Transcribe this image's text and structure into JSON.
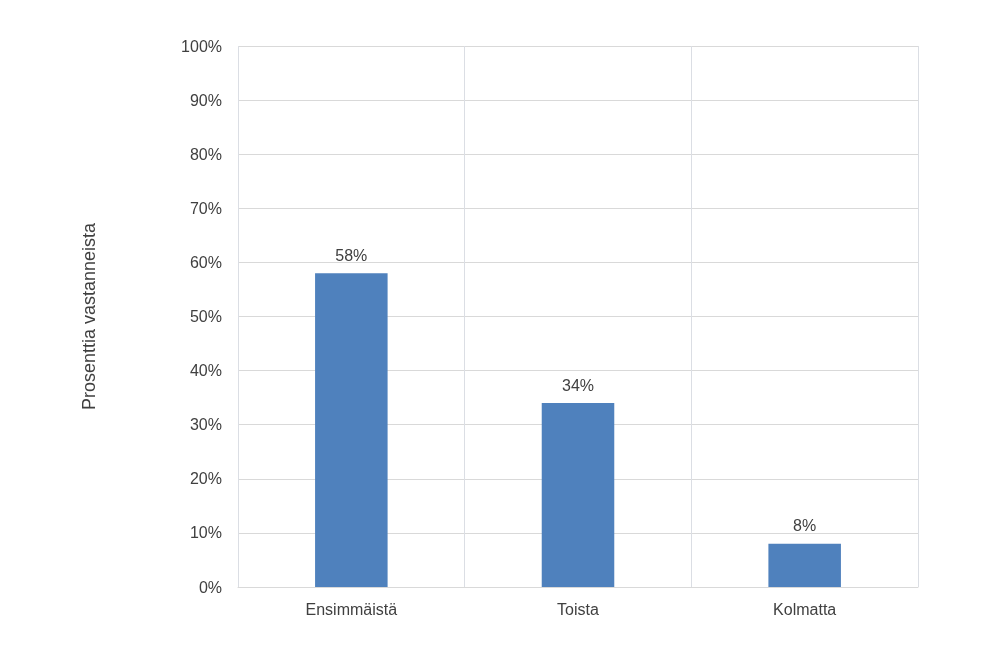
{
  "chart_data": {
    "type": "bar",
    "ylabel": "Prosenttia vastanneista",
    "categories": [
      "Ensimmäistä",
      "Toista",
      "Kolmatta"
    ],
    "values": [
      58,
      34,
      8
    ],
    "color": "#4f81bd",
    "value_labels": [
      "58%",
      "34%",
      "8%"
    ],
    "ylim": [
      0,
      100
    ],
    "yticks": [
      {
        "value": 0,
        "label": "0%"
      },
      {
        "value": 10,
        "label": "10%"
      },
      {
        "value": 20,
        "label": "20%"
      },
      {
        "value": 30,
        "label": "30%"
      },
      {
        "value": 40,
        "label": "40%"
      },
      {
        "value": 50,
        "label": "50%"
      },
      {
        "value": 60,
        "label": "60%"
      },
      {
        "value": 70,
        "label": "70%"
      },
      {
        "value": 80,
        "label": "80%"
      },
      {
        "value": 90,
        "label": "90%"
      },
      {
        "value": 100,
        "label": "100%"
      }
    ],
    "grid": true
  }
}
